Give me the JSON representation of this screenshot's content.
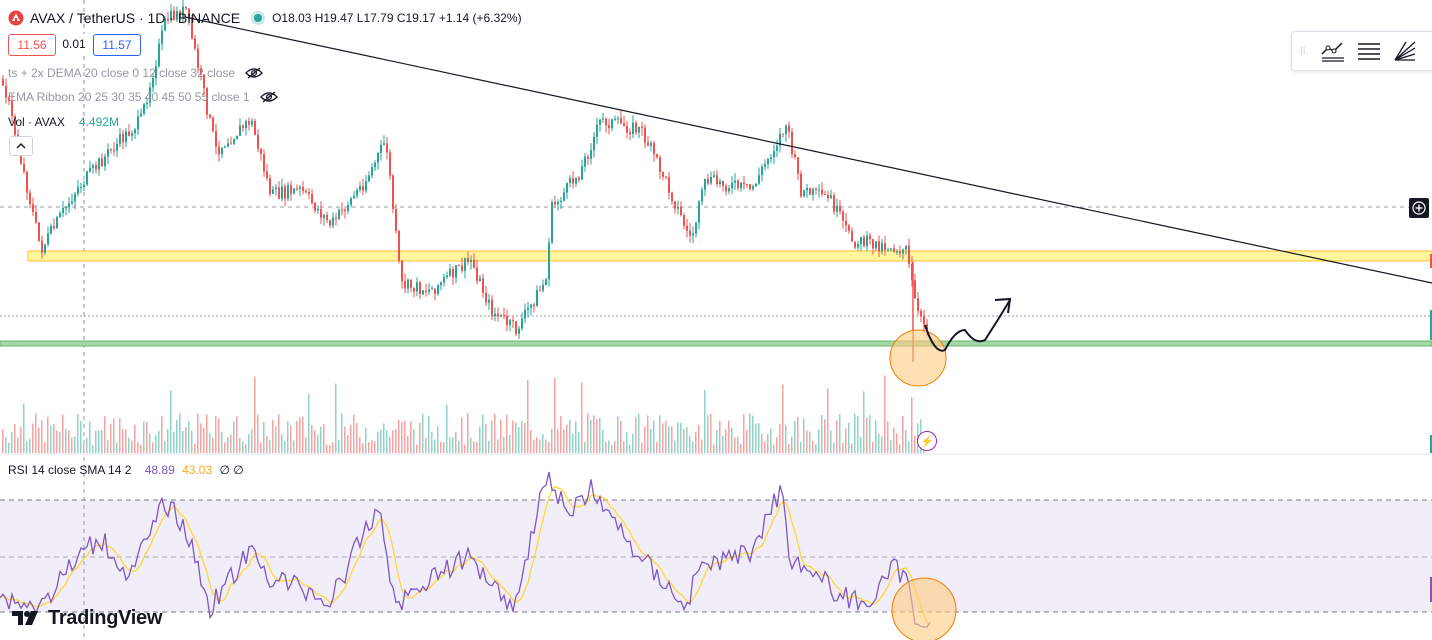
{
  "header": {
    "symbol": "AVAX / TetherUS · 1D · BINANCE",
    "ohlc": "O18.03 H19.47 L17.79 C19.17 +1.14 (+6.32%)"
  },
  "quote": {
    "bid": "11.56",
    "spread": "0.01",
    "ask": "11.57"
  },
  "indicators": [
    {
      "label": "ts + 2x DEMA 20 close 0 12 close 32 close"
    },
    {
      "label": "EMA Ribbon 20 25 30 35 40 45 50 55 close 1"
    }
  ],
  "volume": {
    "label": "Vol · AVAX",
    "value": "4.492M"
  },
  "rsi": {
    "label": "RSI 14 close SMA 14 2",
    "value": "48.89",
    "sma": "43.03",
    "extra": "∅ ∅"
  },
  "branding": {
    "logo_text": "TradingView"
  },
  "colors": {
    "up": "#26a69a",
    "down": "#ef5350",
    "resistance_zone": "#fff59d",
    "support_zone": "#a5d6a7",
    "rsi_line": "#7e57c2",
    "rsi_sma": "#fdd835",
    "highlight_circle": "#ffcc80"
  },
  "icons": [
    "eye-off-icon",
    "chevron-up-icon",
    "trend-line-icon",
    "horizontal-lines-icon",
    "fib-fan-icon",
    "plus-icon",
    "lightning-icon"
  ]
}
